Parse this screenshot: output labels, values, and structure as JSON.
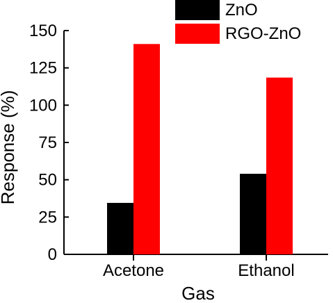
{
  "chart_data": {
    "type": "bar",
    "title": "",
    "xlabel": "Gas",
    "ylabel": "Response (%)",
    "categories": [
      "Acetone",
      "Ethanol"
    ],
    "ylim": [
      0,
      150
    ],
    "yticks": [
      0,
      25,
      50,
      75,
      100,
      125,
      150
    ],
    "ytick_labels": [
      "0",
      "25",
      "50",
      "75",
      "100",
      "125",
      "150"
    ],
    "grid": false,
    "legend_position": "top-right",
    "series": [
      {
        "name": "ZnO",
        "color": "#000000",
        "values": [
          34.5,
          54
        ]
      },
      {
        "name": "RGO-ZnO",
        "color": "#ff0000",
        "values": [
          141,
          118.5
        ]
      }
    ]
  }
}
